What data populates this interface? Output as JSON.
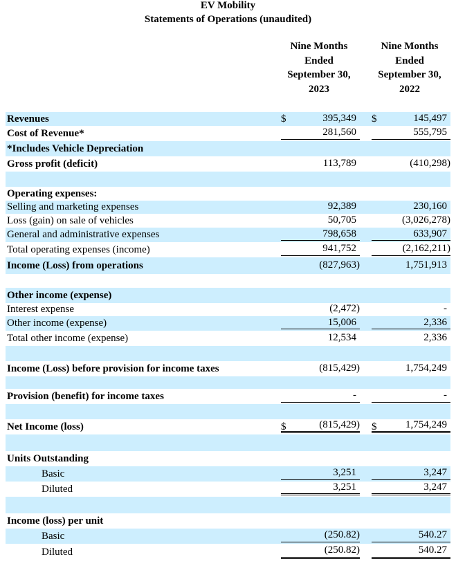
{
  "header": {
    "title": "EV Mobility",
    "subtitle": "Statements of Operations (unaudited)"
  },
  "table": {
    "columns": [
      [
        "Nine Months",
        "Ended",
        "September 30,",
        "2023"
      ],
      [
        "Nine Months",
        "Ended",
        "September 30,",
        "2022"
      ]
    ],
    "rows": [
      {
        "label": "Revenues",
        "cur1": "$",
        "v1": "395,349",
        "cur2": "$",
        "v2": "145,497"
      },
      {
        "label": "Cost of Revenue*",
        "v1": "281,560",
        "v2": "555,795"
      },
      {
        "label": "*Includes Vehicle Depreciation"
      },
      {
        "label": "Gross profit (deficit)",
        "v1": "113,789",
        "v2": "(410,298)"
      },
      {
        "label": "Operating expenses:"
      },
      {
        "label": "Selling and marketing expenses",
        "v1": "92,389",
        "v2": "230,160"
      },
      {
        "label": "Loss (gain) on sale of vehicles",
        "v1": "50,705",
        "v2": "(3,026,278)"
      },
      {
        "label": "General and administrative expenses",
        "v1": "798,658",
        "v2": "633,907"
      },
      {
        "label": "Total operating expenses (income)",
        "v1": "941,752",
        "v2": "(2,162,211)"
      },
      {
        "label": "Income (Loss) from operations",
        "v1": "(827,963)",
        "v2": "1,751,913"
      },
      {
        "label": "Other income (expense)"
      },
      {
        "label": "Interest expense",
        "v1": "(2,472)",
        "v2": "-"
      },
      {
        "label": "Other income (expense)",
        "v1": "15,006",
        "v2": "2,336"
      },
      {
        "label": "Total other income (expense)",
        "v1": "12,534",
        "v2": "2,336"
      },
      {
        "label": "Income (Loss) before provision for income taxes",
        "v1": "(815,429)",
        "v2": "1,754,249"
      },
      {
        "label": "Provision (benefit) for income taxes",
        "v1": "-",
        "v2": "-"
      },
      {
        "label": "Net Income (loss)",
        "cur1": "$",
        "v1": "(815,429)",
        "cur2": "$",
        "v2": "1,754,249"
      },
      {
        "label": "Units Outstanding"
      },
      {
        "label": "Basic",
        "v1": "3,251",
        "v2": "3,247"
      },
      {
        "label": "Diluted",
        "v1": "3,251",
        "v2": "3,247"
      },
      {
        "label": "Income (loss) per unit"
      },
      {
        "label": "Basic",
        "v1": "(250.82)",
        "v2": "540.27"
      },
      {
        "label": "Diluted",
        "v1": "(250.82)",
        "v2": "540.27"
      }
    ]
  }
}
